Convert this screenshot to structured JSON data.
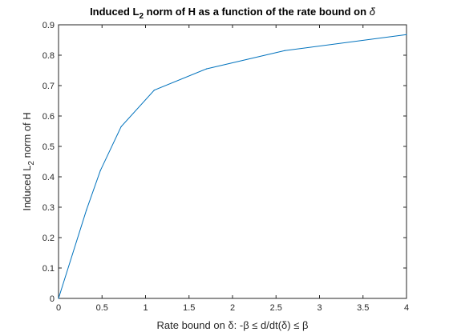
{
  "chart_data": {
    "type": "line",
    "title": {
      "prefix": "Induced L",
      "subscript": "2",
      "suffix": " norm of H as a function of the rate bound on ",
      "symbol": "δ"
    },
    "xlabel": {
      "text": "Rate bound on δ: -β ≤ d/dt(δ) ≤ β"
    },
    "ylabel": {
      "prefix": "Induced L",
      "subscript": "2",
      "suffix": " norm of H"
    },
    "xlim": [
      0,
      4
    ],
    "ylim": [
      0,
      0.9
    ],
    "xticks": [
      0,
      0.5,
      1,
      1.5,
      2,
      2.5,
      3,
      3.5,
      4
    ],
    "yticks": [
      0,
      0.1,
      0.2,
      0.3,
      0.4,
      0.5,
      0.6,
      0.7,
      0.8,
      0.9
    ],
    "xtick_labels": [
      "0",
      "0.5",
      "1",
      "1.5",
      "2",
      "2.5",
      "3",
      "3.5",
      "4"
    ],
    "ytick_labels": [
      "0",
      "0.1",
      "0.2",
      "0.3",
      "0.4",
      "0.5",
      "0.6",
      "0.7",
      "0.8",
      "0.9"
    ],
    "grid": false,
    "legend": "none",
    "series": [
      {
        "color": "#0072BD",
        "x": [
          0,
          0.32,
          0.48,
          0.72,
          1.1,
          1.7,
          2.6,
          4.0
        ],
        "y": [
          0,
          0.29,
          0.42,
          0.565,
          0.685,
          0.755,
          0.815,
          0.868
        ]
      }
    ]
  }
}
